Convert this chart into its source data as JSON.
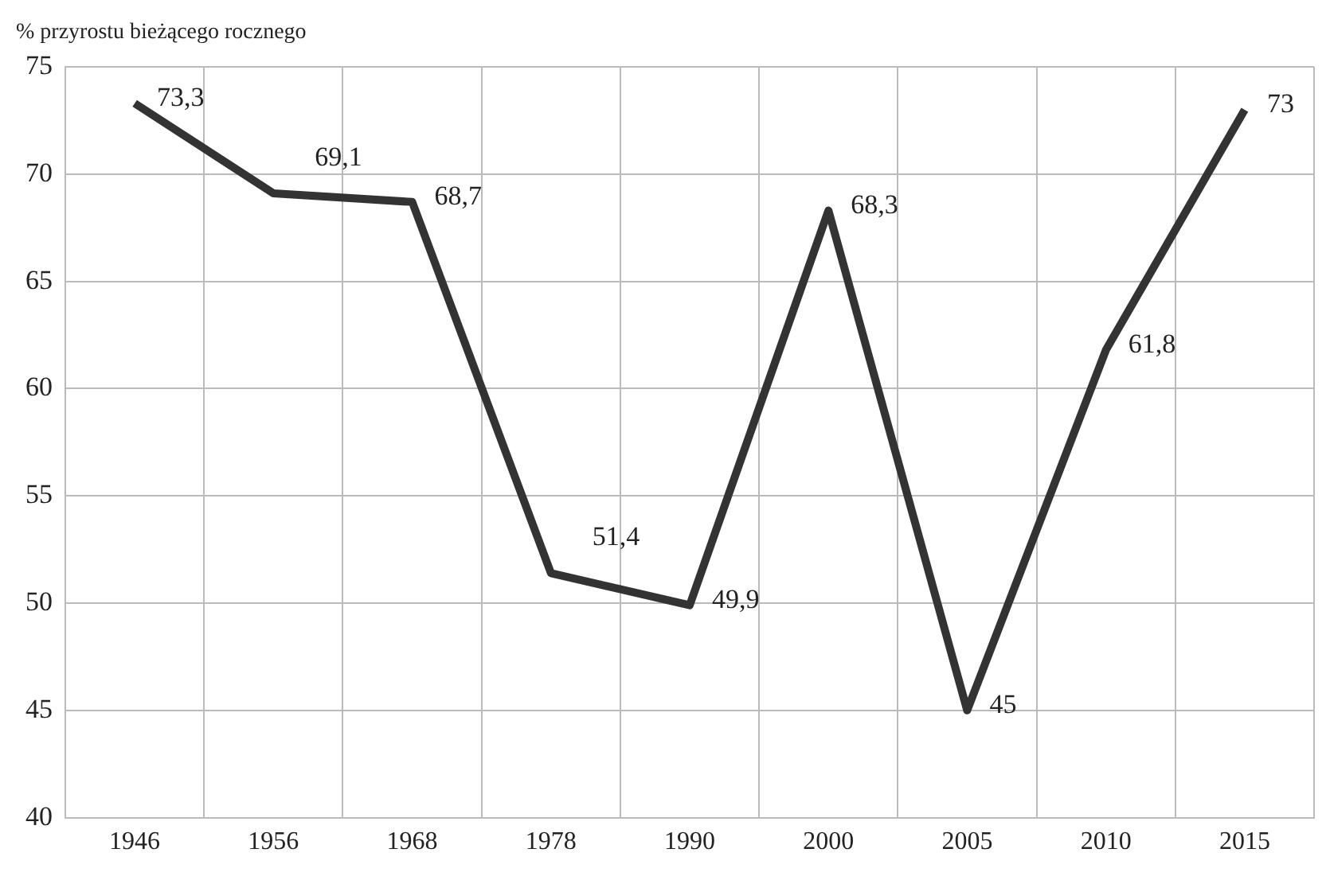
{
  "chart_data": {
    "type": "line",
    "ylabel": "% przyrostu bieżącego rocznego",
    "categories": [
      "1946",
      "1956",
      "1968",
      "1978",
      "1990",
      "2000",
      "2005",
      "2010",
      "2015"
    ],
    "series": [
      {
        "color": "#333333",
        "values": [
          73.3,
          69.1,
          68.7,
          51.4,
          49.9,
          68.3,
          45,
          61.8,
          73
        ],
        "value_labels": [
          "73,3",
          "69,1",
          "68,7",
          "51,4",
          "49,9",
          "68,3",
          "45",
          "61,8",
          "73"
        ]
      }
    ],
    "ylim": [
      40,
      75
    ],
    "yticks": [
      40,
      45,
      50,
      55,
      60,
      65,
      70,
      75
    ],
    "grid": true,
    "legend": false,
    "marker": "none",
    "line_style": "solid"
  }
}
